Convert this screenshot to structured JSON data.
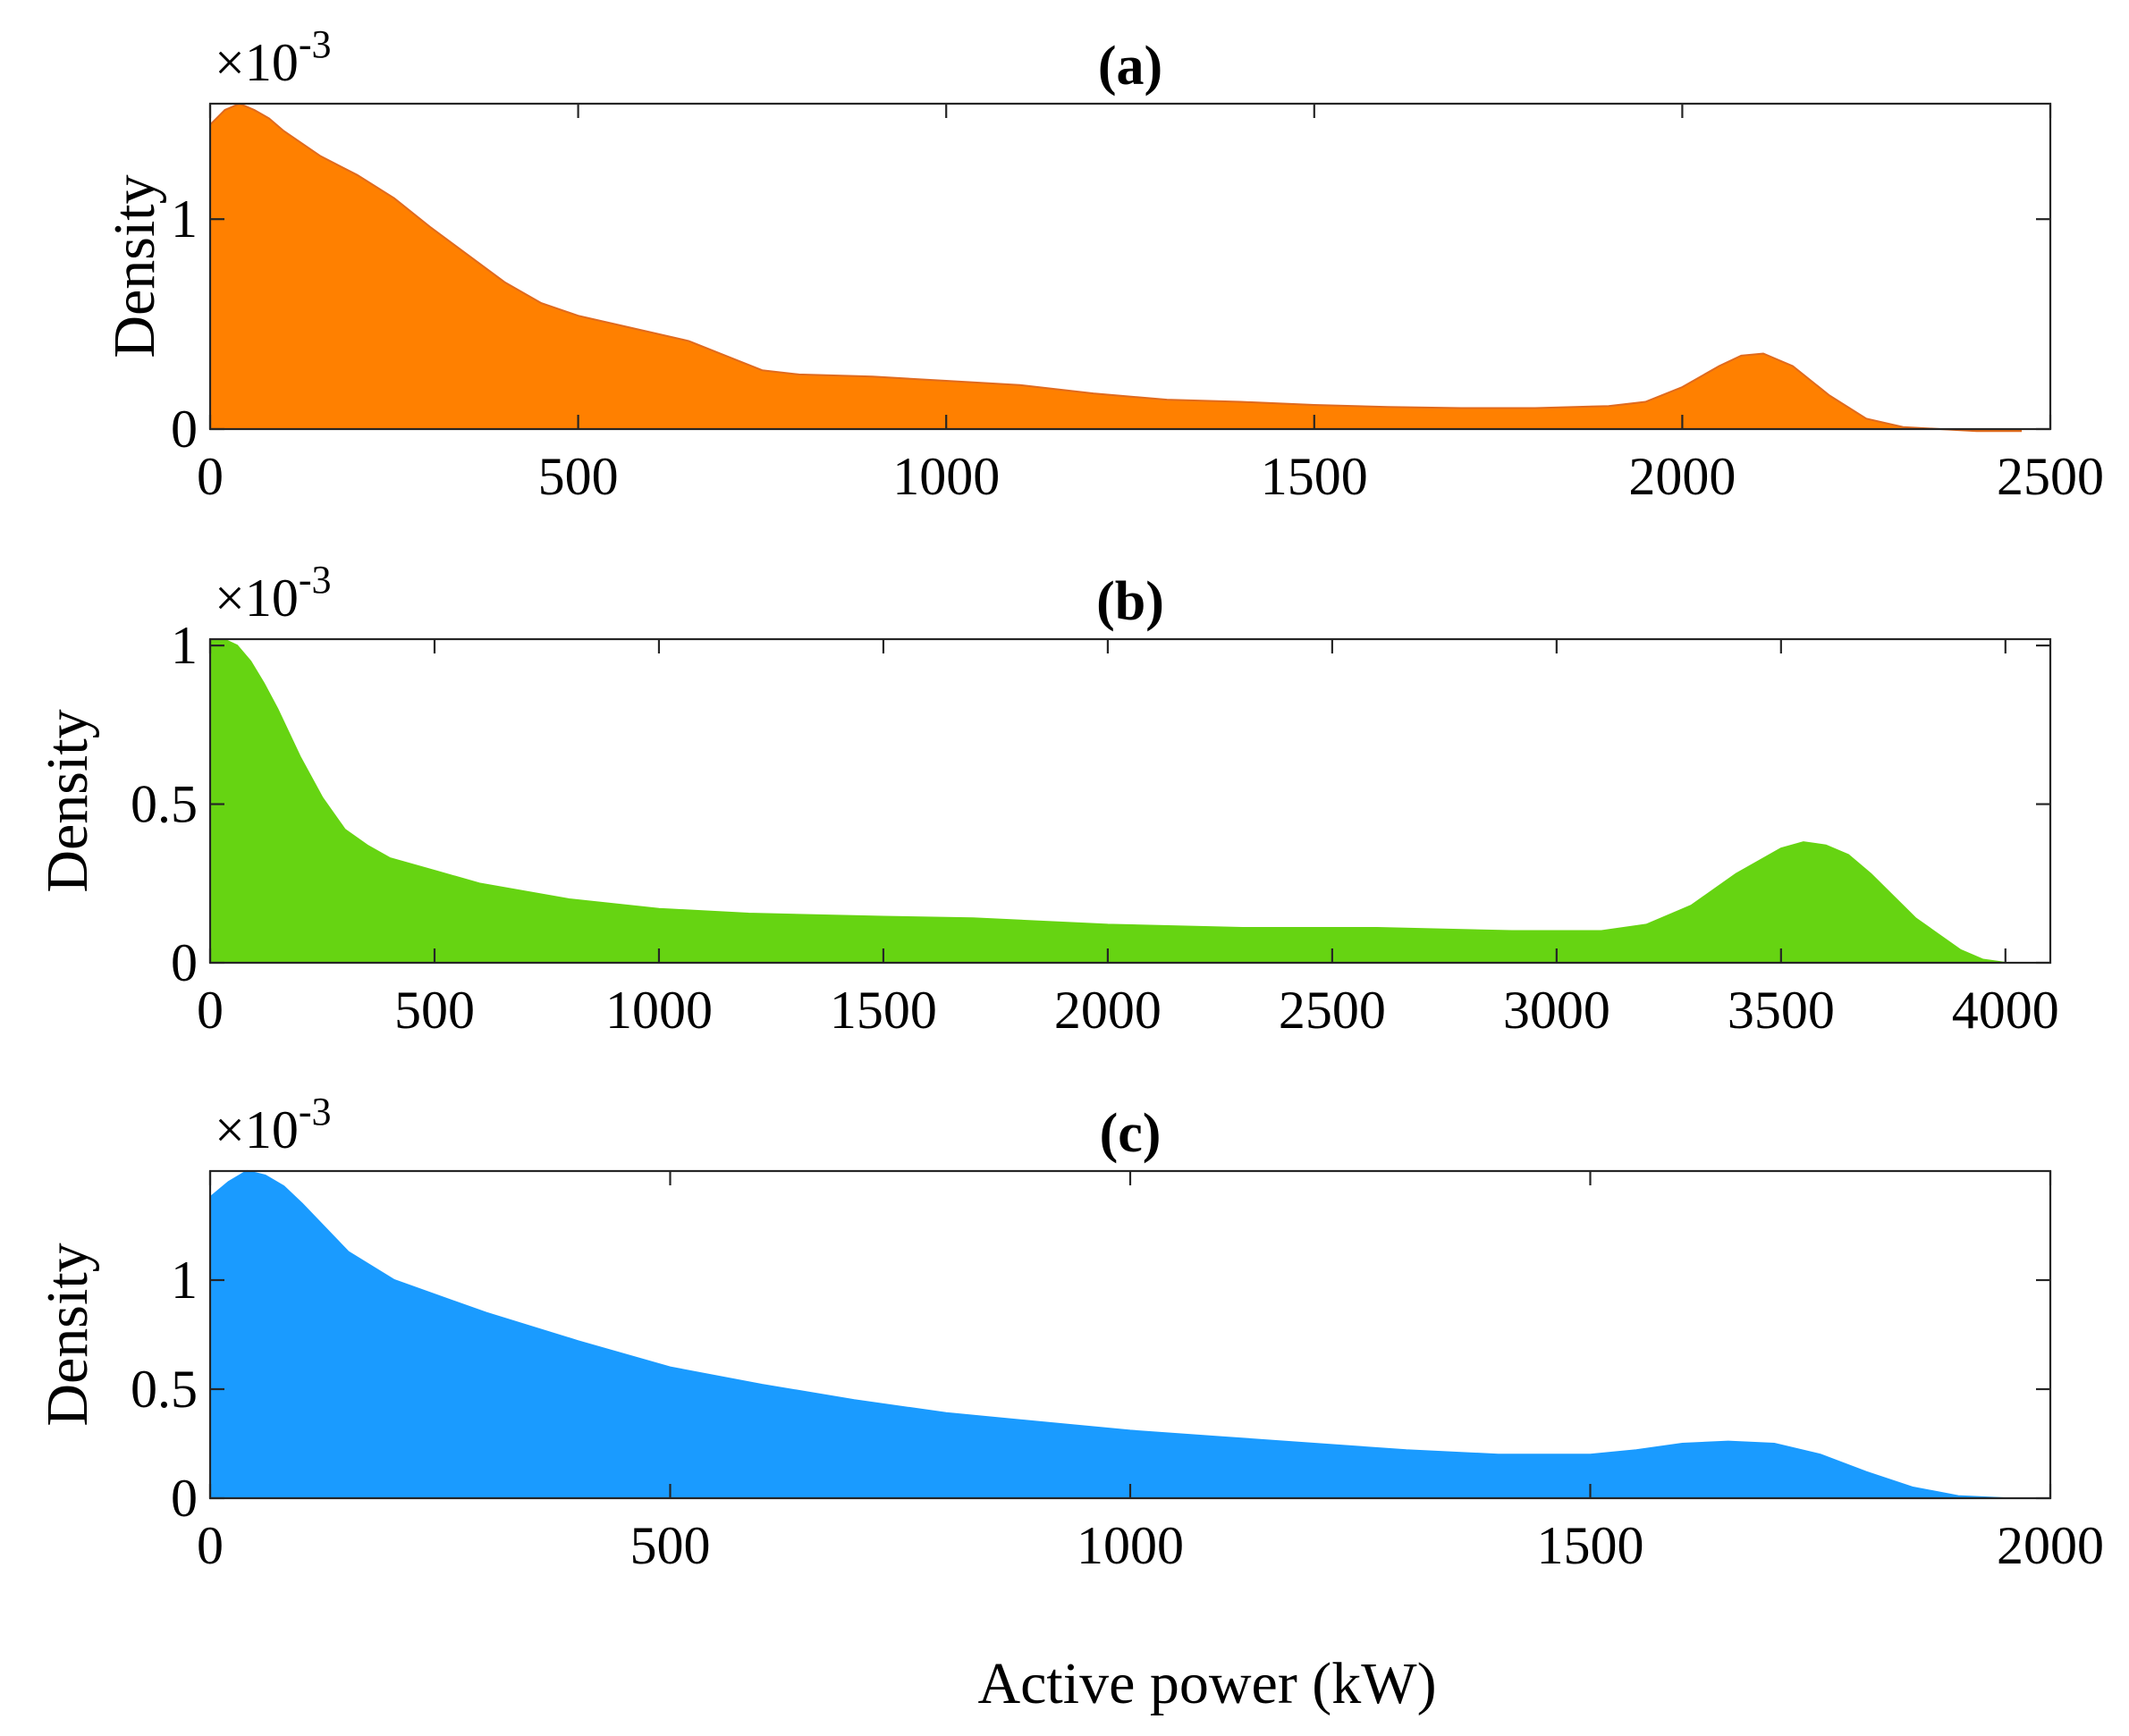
{
  "figure": {
    "xlabel": "Active power (kW)"
  },
  "chart_data": [
    {
      "type": "area",
      "panel": "a",
      "title": "(a)",
      "ylabel": "Density",
      "multiplier_base": "×10",
      "multiplier_exp": "-3",
      "color": "#FF8000",
      "edge_color": "#E06A1E",
      "xlim": [
        0,
        2500
      ],
      "ylim": [
        0,
        1.55
      ],
      "xticks": [
        0,
        500,
        1000,
        1500,
        2000,
        2500
      ],
      "xtick_labels": [
        "0",
        "500",
        "1000",
        "1500",
        "2000",
        "2500"
      ],
      "yticks": [
        0,
        1
      ],
      "ytick_labels": [
        "0",
        "1"
      ],
      "x": [
        0,
        20,
        40,
        60,
        80,
        100,
        150,
        200,
        250,
        300,
        350,
        400,
        450,
        500,
        550,
        600,
        650,
        700,
        750,
        800,
        900,
        1000,
        1100,
        1200,
        1300,
        1400,
        1500,
        1600,
        1700,
        1800,
        1900,
        1950,
        2000,
        2050,
        2080,
        2110,
        2150,
        2200,
        2250,
        2300,
        2350,
        2400,
        2460
      ],
      "y": [
        1.45,
        1.52,
        1.55,
        1.52,
        1.48,
        1.42,
        1.3,
        1.21,
        1.1,
        0.96,
        0.83,
        0.7,
        0.6,
        0.54,
        0.5,
        0.46,
        0.42,
        0.35,
        0.28,
        0.26,
        0.25,
        0.23,
        0.21,
        0.17,
        0.14,
        0.13,
        0.115,
        0.105,
        0.1,
        0.1,
        0.11,
        0.13,
        0.2,
        0.3,
        0.35,
        0.36,
        0.3,
        0.16,
        0.05,
        0.01,
        0.0,
        -0.01,
        -0.01
      ]
    },
    {
      "type": "area",
      "panel": "b",
      "title": "(b)",
      "ylabel": "Density",
      "multiplier_base": "×10",
      "multiplier_exp": "-3",
      "color": "#66D412",
      "edge_color": "#66D412",
      "xlim": [
        0,
        4100
      ],
      "ylim": [
        0,
        1.02
      ],
      "xticks": [
        0,
        500,
        1000,
        1500,
        2000,
        2500,
        3000,
        3500,
        4000
      ],
      "xtick_labels": [
        "0",
        "500",
        "1000",
        "1500",
        "2000",
        "2500",
        "3000",
        "3500",
        "4000"
      ],
      "yticks": [
        0,
        0.5,
        1
      ],
      "ytick_labels": [
        "0",
        "0.5",
        "1"
      ],
      "x": [
        0,
        30,
        60,
        90,
        120,
        150,
        200,
        250,
        300,
        350,
        400,
        500,
        600,
        800,
        1000,
        1200,
        1500,
        1700,
        2000,
        2300,
        2600,
        2900,
        3100,
        3200,
        3300,
        3400,
        3500,
        3550,
        3600,
        3650,
        3700,
        3800,
        3900,
        3950,
        4000
      ],
      "y": [
        1.02,
        1.02,
        1.0,
        0.95,
        0.88,
        0.8,
        0.65,
        0.52,
        0.42,
        0.37,
        0.33,
        0.29,
        0.25,
        0.2,
        0.17,
        0.155,
        0.145,
        0.14,
        0.12,
        0.11,
        0.11,
        0.1,
        0.1,
        0.12,
        0.18,
        0.28,
        0.36,
        0.38,
        0.37,
        0.34,
        0.28,
        0.14,
        0.04,
        0.01,
        0.0
      ]
    },
    {
      "type": "area",
      "panel": "c",
      "title": "(c)",
      "ylabel": "Density",
      "multiplier_base": "×10",
      "multiplier_exp": "-3",
      "color": "#1A9BFF",
      "edge_color": "#1A9BFF",
      "xlim": [
        0,
        2000
      ],
      "ylim": [
        0,
        1.5
      ],
      "xticks": [
        0,
        500,
        1000,
        1500,
        2000
      ],
      "xtick_labels": [
        "0",
        "500",
        "1000",
        "1500",
        "2000"
      ],
      "yticks": [
        0,
        0.5,
        1
      ],
      "ytick_labels": [
        "0",
        "0.5",
        "1"
      ],
      "x": [
        0,
        20,
        40,
        60,
        80,
        100,
        150,
        200,
        300,
        400,
        500,
        600,
        700,
        800,
        900,
        1000,
        1100,
        1200,
        1300,
        1400,
        1500,
        1550,
        1600,
        1650,
        1700,
        1750,
        1800,
        1850,
        1900,
        1950,
        1980
      ],
      "y": [
        1.38,
        1.45,
        1.5,
        1.48,
        1.43,
        1.35,
        1.13,
        1.0,
        0.85,
        0.72,
        0.6,
        0.52,
        0.45,
        0.39,
        0.35,
        0.31,
        0.28,
        0.25,
        0.22,
        0.2,
        0.2,
        0.22,
        0.25,
        0.26,
        0.25,
        0.2,
        0.12,
        0.05,
        0.01,
        0.0,
        0.0
      ]
    }
  ]
}
